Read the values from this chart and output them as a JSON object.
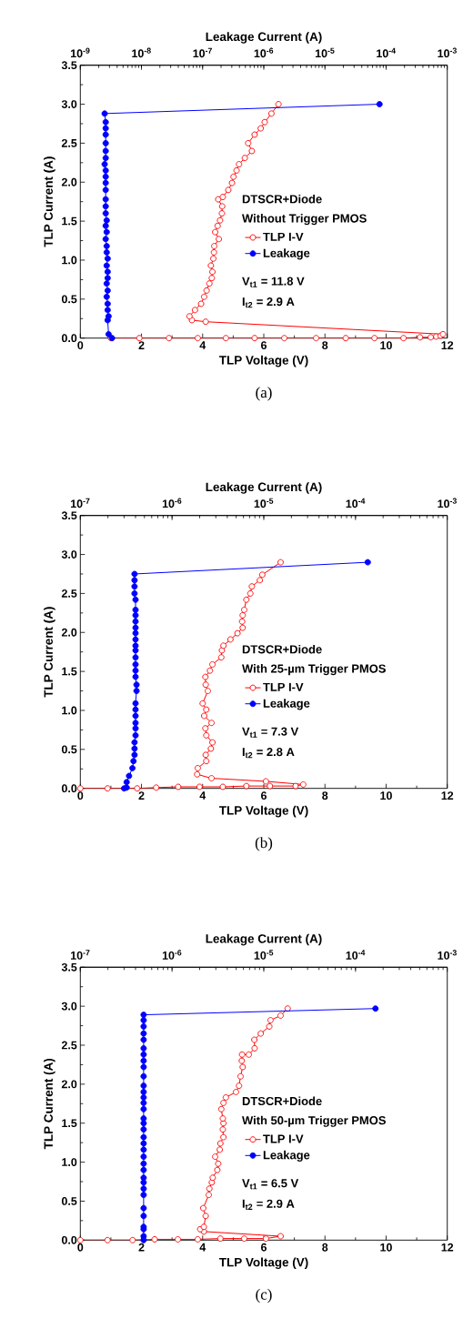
{
  "chart_data": [
    {
      "type": "line",
      "xlabel": "TLP Voltage (V)",
      "ylabel": "TLP Current (A)",
      "x2label": "Leakage Current (A)",
      "legend_title": "DTSCR+Diode",
      "legend": "right",
      "marker": "circle",
      "line_style": "solid",
      "log": "x2",
      "xlim": [
        0,
        12
      ],
      "xticks": [
        0,
        2,
        4,
        6,
        8,
        10,
        12
      ],
      "ylim": [
        0,
        3.5
      ],
      "yticks": [
        {
          "value": 0,
          "label": "0.0"
        },
        {
          "value": 0.5,
          "label": "0.5"
        },
        {
          "value": 1,
          "label": "1.0"
        },
        {
          "value": 1.5,
          "label": "1.5"
        },
        {
          "value": 2,
          "label": "2.0"
        },
        {
          "value": 2.5,
          "label": "2.5"
        },
        {
          "value": 3,
          "label": "3.0"
        },
        {
          "value": 3.5,
          "label": "3.5"
        }
      ],
      "x2lim": [
        1e-09,
        0.001
      ],
      "x2ticks": [
        {
          "value": 1e-09,
          "label": "10$^{-9}$"
        },
        {
          "value": 1e-08,
          "label": "10$^{-8}$"
        },
        {
          "value": 1e-07,
          "label": "10$^{-7}$"
        },
        {
          "value": 1e-06,
          "label": "10$^{-6}$"
        },
        {
          "value": 1e-05,
          "label": "10$^{-5}$"
        },
        {
          "value": 0.0001,
          "label": "10$^{-4}$"
        },
        {
          "value": 0.001,
          "label": "10$^{-3}$"
        }
      ],
      "annotations": [
        "Without Trigger PMOS",
        "V$_{t1}$ = 11.8 V",
        "I$_{t2}$ = 2.9 A",
        "(a)"
      ],
      "series": [
        {
          "name": "TLP I-V",
          "color": "#ff0000",
          "x": [
            1.0,
            1.93,
            2.9,
            3.84,
            4.76,
            5.7,
            6.67,
            7.71,
            8.68,
            9.62,
            10.57,
            11.11,
            11.46,
            11.64,
            11.78,
            11.86,
            4.1,
            3.65,
            3.57,
            3.75,
            3.95,
            4.05,
            4.13,
            4.22,
            4.3,
            4.32,
            4.27,
            4.35,
            4.37,
            4.38,
            4.53,
            4.41,
            4.49,
            4.57,
            4.63,
            4.64,
            4.51,
            4.66,
            4.84,
            4.96,
            5.01,
            5.11,
            5.19,
            5.38,
            5.61,
            5.49,
            5.7,
            5.9,
            6.03,
            6.25,
            6.48
          ],
          "values": [
            0,
            0,
            0,
            0,
            0,
            0,
            0,
            0,
            0,
            0,
            0,
            0.01,
            0.01,
            0.02,
            0.03,
            0.05,
            0.21,
            0.23,
            0.28,
            0.36,
            0.44,
            0.53,
            0.61,
            0.7,
            0.77,
            0.85,
            0.93,
            1.02,
            1.1,
            1.18,
            1.27,
            1.36,
            1.44,
            1.51,
            1.6,
            1.69,
            1.78,
            1.81,
            1.9,
            1.99,
            2.07,
            2.15,
            2.23,
            2.31,
            2.4,
            2.5,
            2.61,
            2.69,
            2.77,
            2.88,
            3.0
          ]
        },
        {
          "name": "Leakage",
          "color": "#0000ff",
          "axis": "x2",
          "x": [
            3.3e-09,
            2.9e-09,
            2.8e-09,
            2.9e-09,
            2.8e-09,
            2.8e-09,
            2.7e-09,
            2.8e-09,
            2.7e-09,
            2.8e-09,
            2.8e-09,
            2.7e-09,
            2.8e-09,
            2.7e-09,
            2.7e-09,
            2.6e-09,
            2.7e-09,
            2.6e-09,
            2.7e-09,
            2.6e-09,
            2.6e-09,
            2.6e-09,
            2.6e-09,
            2.6e-09,
            2.6e-09,
            2.6e-09,
            2.5e-09,
            2.6e-09,
            2.6e-09,
            2.6e-09,
            2.6e-09,
            2.6e-09,
            2.6e-09,
            2.5e-09,
            7.8e-05
          ],
          "values": [
            0,
            0.05,
            0.23,
            0.28,
            0.36,
            0.44,
            0.53,
            0.61,
            0.7,
            0.77,
            0.85,
            0.93,
            1.02,
            1.1,
            1.18,
            1.27,
            1.36,
            1.44,
            1.51,
            1.6,
            1.69,
            1.78,
            1.9,
            1.99,
            2.07,
            2.15,
            2.23,
            2.31,
            2.4,
            2.5,
            2.61,
            2.69,
            2.77,
            2.88,
            3.0
          ]
        }
      ]
    },
    {
      "type": "line",
      "xlabel": "TLP Voltage (V)",
      "ylabel": "TLP Current (A)",
      "x2label": "Leakage Current (A)",
      "legend_title": "DTSCR+Diode",
      "legend": "right",
      "marker": "circle",
      "line_style": "solid",
      "log": "x2",
      "xlim": [
        0,
        12
      ],
      "xticks": [
        0,
        2,
        4,
        6,
        8,
        10,
        12
      ],
      "ylim": [
        0,
        3.5
      ],
      "yticks": [
        {
          "value": 0,
          "label": "0.0"
        },
        {
          "value": 0.5,
          "label": "0.5"
        },
        {
          "value": 1,
          "label": "1.0"
        },
        {
          "value": 1.5,
          "label": "1.5"
        },
        {
          "value": 2,
          "label": "2.0"
        },
        {
          "value": 2.5,
          "label": "2.5"
        },
        {
          "value": 3,
          "label": "3.0"
        },
        {
          "value": 3.5,
          "label": "3.5"
        }
      ],
      "x2lim": [
        1e-07,
        0.001
      ],
      "x2ticks": [
        {
          "value": 1e-07,
          "label": "10$^{-7}$"
        },
        {
          "value": 1e-06,
          "label": "10$^{-6}$"
        },
        {
          "value": 1e-05,
          "label": "10$^{-5}$"
        },
        {
          "value": 0.0001,
          "label": "10$^{-4}$"
        },
        {
          "value": 0.001,
          "label": "10$^{-3}$"
        }
      ],
      "annotations": [
        "With 25-µm Trigger PMOS",
        "V$_{t1}$ = 7.3 V",
        "I$_{t2}$ = 2.8 A",
        "(b)"
      ],
      "series": [
        {
          "name": "TLP I-V",
          "color": "#ff0000",
          "x": [
            0,
            0.89,
            1.86,
            2.48,
            3.2,
            3.9,
            4.66,
            5.43,
            6.2,
            7.04,
            7.29,
            6.07,
            4.29,
            3.82,
            3.84,
            4.12,
            4.1,
            4.27,
            4.32,
            4.12,
            4.09,
            4.29,
            4.05,
            4.12,
            4.0,
            4.17,
            4.1,
            4.09,
            4.24,
            4.32,
            4.61,
            4.63,
            4.68,
            4.91,
            5.14,
            5.31,
            5.29,
            5.31,
            5.36,
            5.43,
            5.56,
            5.61,
            5.87,
            5.95,
            6.55
          ],
          "values": [
            0,
            0,
            0,
            0.01,
            0.02,
            0.02,
            0.02,
            0.03,
            0.03,
            0.03,
            0.05,
            0.09,
            0.13,
            0.18,
            0.26,
            0.35,
            0.43,
            0.51,
            0.59,
            0.68,
            0.77,
            0.84,
            0.93,
            1.01,
            1.09,
            1.25,
            1.33,
            1.43,
            1.51,
            1.59,
            1.68,
            1.77,
            1.83,
            1.91,
            1.99,
            2.06,
            2.14,
            2.22,
            2.29,
            2.42,
            2.5,
            2.59,
            2.67,
            2.74,
            2.9
          ]
        },
        {
          "name": "Leakage",
          "color": "#0000ff",
          "axis": "x2",
          "x": [
            3e-07,
            3.2e-07,
            3.2e-07,
            3.4e-07,
            3.7e-07,
            3.8e-07,
            3.9e-07,
            3.9e-07,
            3.9e-07,
            4e-07,
            4e-07,
            4e-07,
            4e-07,
            4e-07,
            4e-07,
            4.1e-07,
            4.1e-07,
            4e-07,
            4e-07,
            4e-07,
            4e-07,
            4e-07,
            4e-07,
            4e-07,
            4e-07,
            4e-07,
            4e-07,
            4e-07,
            4e-07,
            4e-07,
            3.9e-07,
            3.9e-07,
            3.9e-07,
            3.9e-07,
            0.000136
          ],
          "values": [
            0,
            0.01,
            0.08,
            0.16,
            0.26,
            0.35,
            0.43,
            0.51,
            0.59,
            0.68,
            0.77,
            0.84,
            0.93,
            1.01,
            1.09,
            1.25,
            1.33,
            1.43,
            1.51,
            1.59,
            1.68,
            1.77,
            1.83,
            1.91,
            1.99,
            2.06,
            2.14,
            2.22,
            2.29,
            2.42,
            2.5,
            2.59,
            2.67,
            2.75,
            2.9
          ]
        }
      ]
    },
    {
      "type": "line",
      "xlabel": "TLP Voltage (V)",
      "ylabel": "TLP Current (A)",
      "x2label": "Leakage Current (A)",
      "legend_title": "DTSCR+Diode",
      "legend": "right",
      "marker": "circle",
      "line_style": "solid",
      "log": "x2",
      "xlim": [
        0,
        12
      ],
      "xticks": [
        0,
        2,
        4,
        6,
        8,
        10,
        12
      ],
      "ylim": [
        0,
        3.5
      ],
      "yticks": [
        {
          "value": 0,
          "label": "0.0"
        },
        {
          "value": 0.5,
          "label": "0.5"
        },
        {
          "value": 1,
          "label": "1.0"
        },
        {
          "value": 1.5,
          "label": "1.5"
        },
        {
          "value": 2,
          "label": "2.0"
        },
        {
          "value": 2.5,
          "label": "2.5"
        },
        {
          "value": 3,
          "label": "3.0"
        },
        {
          "value": 3.5,
          "label": "3.5"
        }
      ],
      "x2lim": [
        1e-07,
        0.001
      ],
      "x2ticks": [
        {
          "value": 1e-07,
          "label": "10$^{-7}$"
        },
        {
          "value": 1e-06,
          "label": "10$^{-6}$"
        },
        {
          "value": 1e-05,
          "label": "10$^{-5}$"
        },
        {
          "value": 0.0001,
          "label": "10$^{-4}$"
        },
        {
          "value": 0.001,
          "label": "10$^{-3}$"
        }
      ],
      "annotations": [
        "With 50-µm Trigger PMOS",
        "V$_{t1}$ = 6.5 V",
        "I$_{t2}$ = 2.9 A",
        "(c)"
      ],
      "series": [
        {
          "name": "TLP I-V",
          "color": "#ff0000",
          "x": [
            0,
            0.89,
            1.71,
            2.43,
            3.19,
            3.84,
            4.58,
            5.36,
            6.07,
            6.55,
            4.04,
            3.92,
            4.04,
            4.1,
            4.02,
            4.2,
            4.22,
            4.3,
            4.33,
            4.48,
            4.51,
            4.41,
            4.56,
            4.58,
            4.68,
            4.66,
            4.68,
            4.66,
            4.61,
            4.68,
            4.76,
            5.09,
            5.19,
            5.24,
            5.31,
            5.28,
            5.29,
            5.51,
            5.7,
            5.69,
            5.9,
            6.18,
            6.22,
            6.55,
            6.78
          ],
          "values": [
            0,
            0,
            0,
            0.01,
            0.01,
            0.01,
            0.02,
            0.02,
            0.02,
            0.05,
            0.11,
            0.14,
            0.17,
            0.31,
            0.41,
            0.58,
            0.66,
            0.74,
            0.8,
            0.9,
            0.98,
            1.07,
            1.16,
            1.24,
            1.32,
            1.42,
            1.5,
            1.56,
            1.68,
            1.76,
            1.83,
            1.9,
            1.98,
            2.1,
            2.22,
            2.3,
            2.38,
            2.38,
            2.46,
            2.57,
            2.65,
            2.74,
            2.82,
            2.88,
            2.97
          ]
        },
        {
          "name": "Leakage",
          "color": "#0000ff",
          "axis": "x2",
          "x": [
            4.9e-07,
            4.9e-07,
            4.9e-07,
            4.9e-07,
            4.9e-07,
            4.9e-07,
            4.9e-07,
            4.9e-07,
            4.9e-07,
            4.9e-07,
            4.9e-07,
            4.9e-07,
            4.9e-07,
            4.9e-07,
            4.9e-07,
            4.9e-07,
            4.9e-07,
            4.9e-07,
            4.9e-07,
            4.9e-07,
            4.9e-07,
            4.9e-07,
            4.9e-07,
            4.9e-07,
            4.9e-07,
            4.9e-07,
            4.9e-07,
            4.9e-07,
            4.9e-07,
            4.9e-07,
            4.9e-07,
            4.9e-07,
            4.9e-07,
            4.9e-07,
            0.000165
          ],
          "values": [
            0,
            0.05,
            0.14,
            0.17,
            0.31,
            0.41,
            0.58,
            0.66,
            0.74,
            0.8,
            0.9,
            0.98,
            1.07,
            1.16,
            1.24,
            1.32,
            1.42,
            1.5,
            1.56,
            1.68,
            1.76,
            1.83,
            1.9,
            1.98,
            2.1,
            2.22,
            2.3,
            2.38,
            2.46,
            2.57,
            2.65,
            2.74,
            2.82,
            2.89,
            2.97
          ]
        }
      ]
    }
  ]
}
